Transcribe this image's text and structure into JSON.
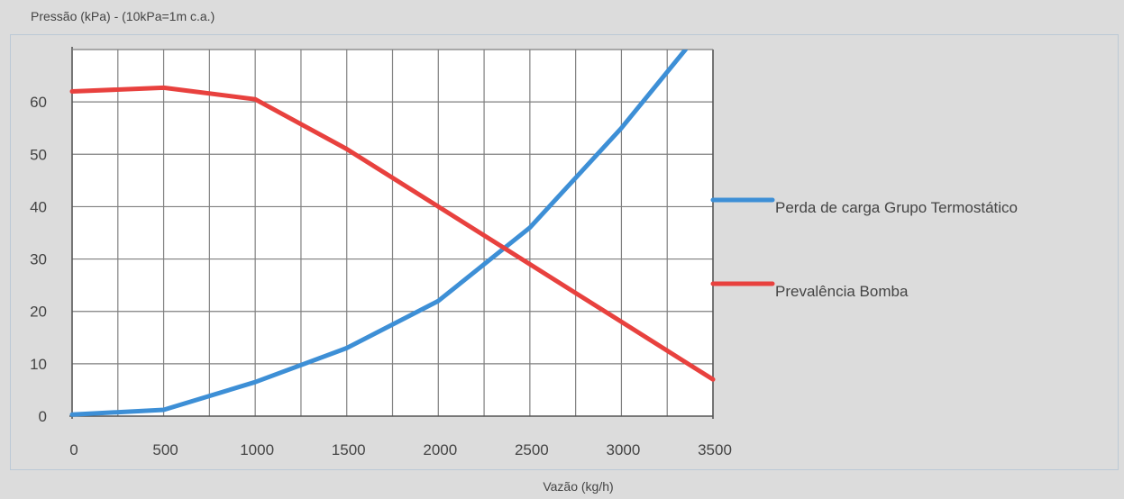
{
  "chart_data": {
    "type": "line",
    "ylabel": "Pressão (kPa) - (10kPa=1m c.a.)",
    "xlabel": "Vazão (kg/h)",
    "xlim": [
      0,
      3500
    ],
    "ylim": [
      0,
      70
    ],
    "x_ticks": [
      0,
      500,
      1000,
      1500,
      2000,
      2500,
      3000,
      3500
    ],
    "y_ticks": [
      0,
      10,
      20,
      30,
      40,
      50,
      60
    ],
    "grid": true,
    "legend_position": "right",
    "series": [
      {
        "name": "Perda de carga Grupo Termostático",
        "color": "#3d8fd6",
        "points": [
          [
            0,
            0.3
          ],
          [
            500,
            1.2
          ],
          [
            1000,
            6.5
          ],
          [
            1500,
            13
          ],
          [
            2000,
            22
          ],
          [
            2500,
            36
          ],
          [
            3000,
            55
          ],
          [
            3350,
            70
          ]
        ]
      },
      {
        "name": "Prevalência Bomba",
        "color": "#e8413e",
        "points": [
          [
            0,
            62
          ],
          [
            500,
            62.7
          ],
          [
            1000,
            60.5
          ],
          [
            1500,
            51
          ],
          [
            2000,
            40
          ],
          [
            2500,
            29
          ],
          [
            3000,
            18
          ],
          [
            3500,
            7
          ]
        ]
      }
    ]
  }
}
